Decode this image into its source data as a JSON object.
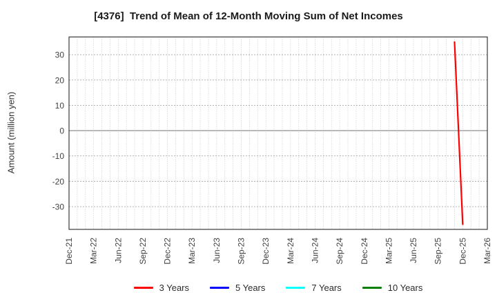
{
  "chart_data": {
    "type": "line",
    "title": "[4376]  Trend of Mean of 12-Month Moving Sum of Net Incomes",
    "ylabel": "Amount (million yen)",
    "xlabel": "",
    "x_tick_labels": [
      "Dec-21",
      "Mar-22",
      "Jun-22",
      "Sep-22",
      "Dec-22",
      "Mar-23",
      "Jun-23",
      "Sep-23",
      "Dec-23",
      "Mar-24",
      "Jun-24",
      "Sep-24",
      "Dec-24",
      "Mar-25",
      "Jun-25",
      "Sep-25",
      "Dec-25",
      "Mar-26"
    ],
    "months_per_major_tick": 3,
    "total_months": 51,
    "y_ticks": [
      30,
      20,
      10,
      0,
      -10,
      -20,
      -30
    ],
    "ylim": [
      -39,
      37
    ],
    "grid": {
      "vertical": "monthly dotted",
      "horizontal": "every 10 units dotted",
      "zero_line": "solid"
    },
    "legend_position": "bottom center",
    "colors": {
      "series_3y": "#ff0000",
      "series_5y": "#0000ff",
      "series_7y": "#00ffff",
      "series_10y": "#008000",
      "axis_text": "#404040",
      "frame": "#3a3a3a"
    },
    "series": [
      {
        "name": "3 Years",
        "color": "#ff0000",
        "points": [
          {
            "month": "Nov-25",
            "month_index": 47,
            "value": 35
          },
          {
            "month": "Dec-25",
            "month_index": 48,
            "value": -37
          }
        ]
      },
      {
        "name": "5 Years",
        "color": "#0000ff",
        "points": []
      },
      {
        "name": "7 Years",
        "color": "#00ffff",
        "points": []
      },
      {
        "name": "10 Years",
        "color": "#008000",
        "points": []
      }
    ]
  }
}
